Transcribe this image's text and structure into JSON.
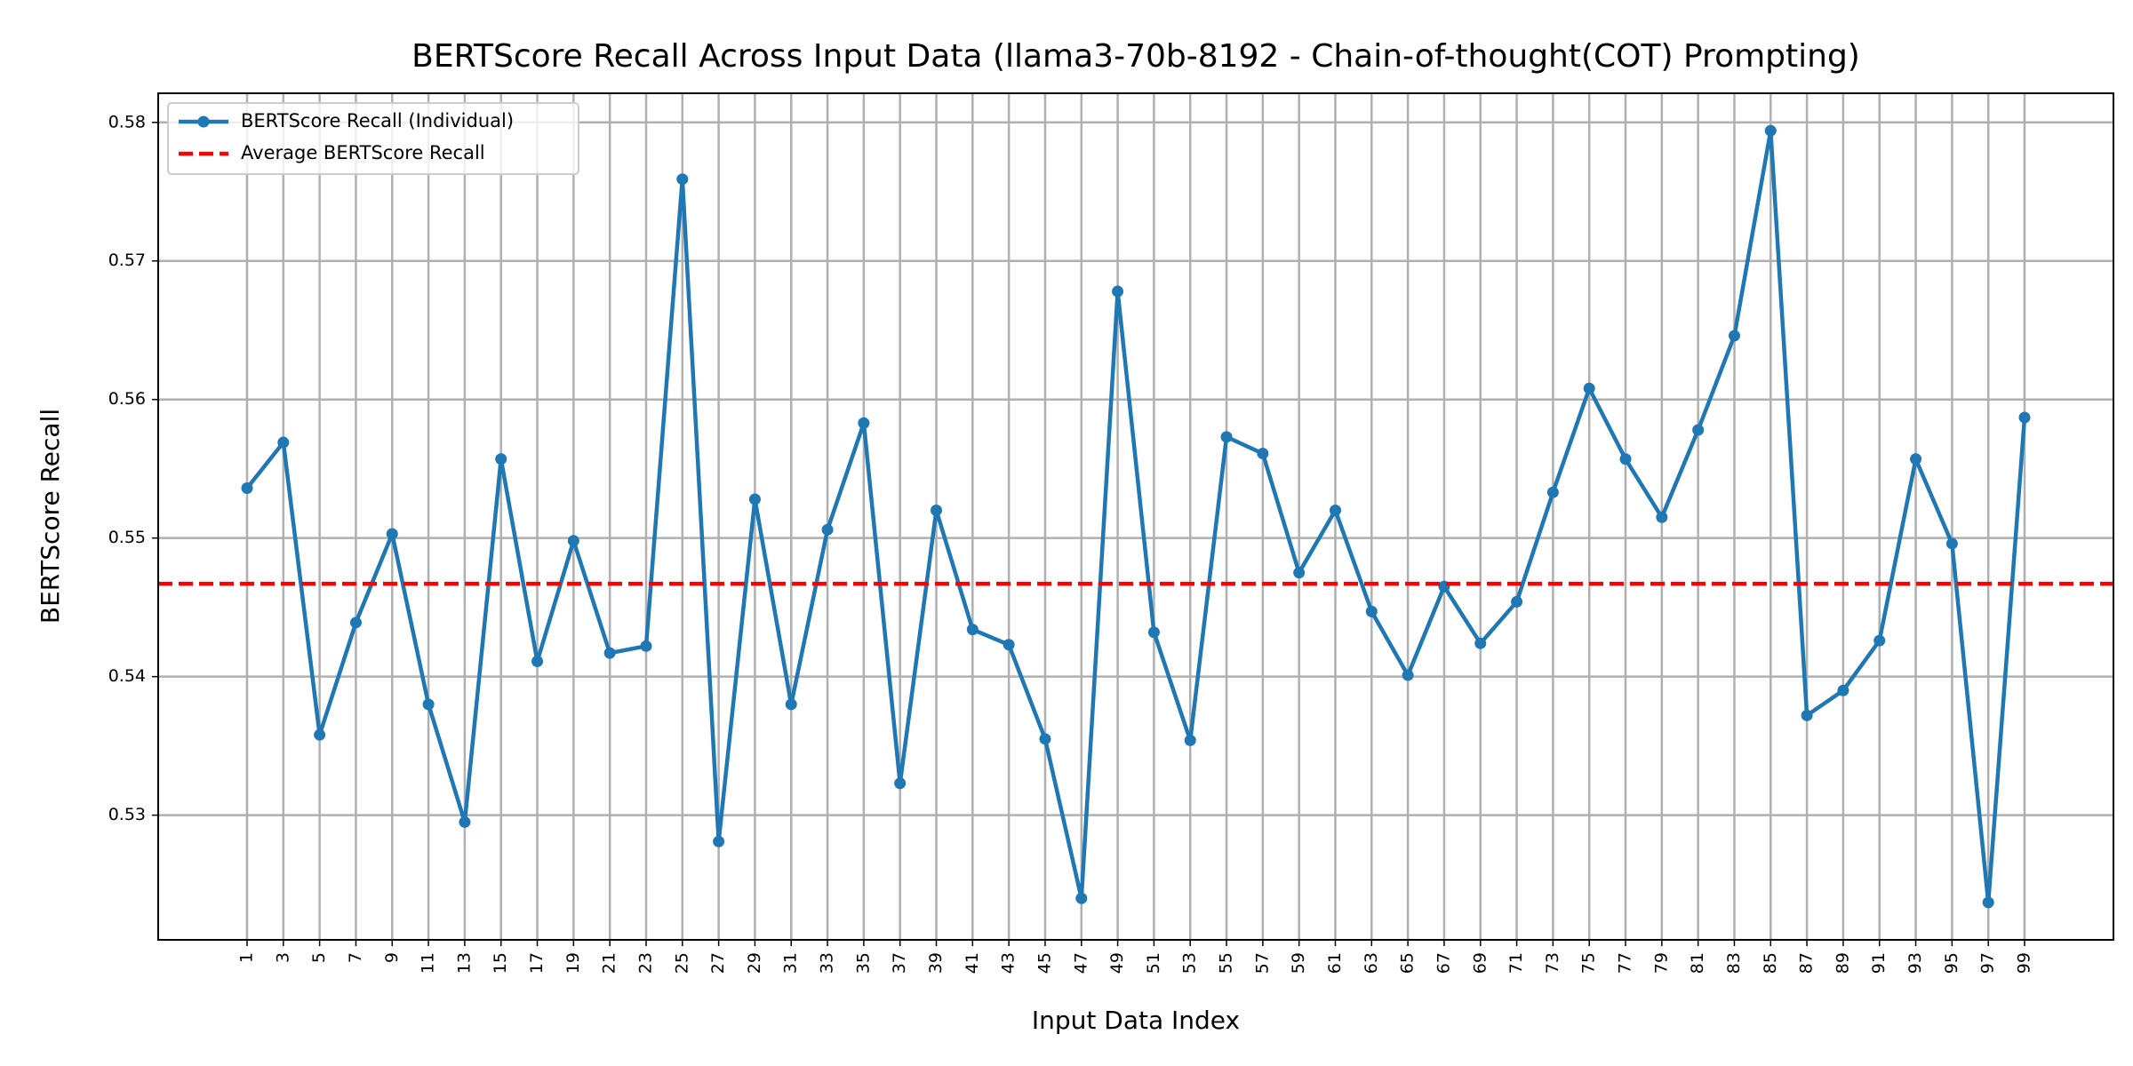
{
  "chart_data": {
    "type": "line",
    "title": "BERTScore Recall Across Input Data (llama3-70b-8192 - Chain-of-thought(COT) Prompting)",
    "x_label": "Input Data Index",
    "y_label": "BERTScore Recall",
    "x": [
      1,
      3,
      5,
      7,
      9,
      11,
      13,
      15,
      17,
      19,
      21,
      23,
      25,
      27,
      29,
      31,
      33,
      35,
      37,
      39,
      41,
      43,
      45,
      47,
      49,
      51,
      53,
      55,
      57,
      59,
      61,
      63,
      65,
      67,
      69,
      71,
      73,
      75,
      77,
      79,
      81,
      83,
      85,
      87,
      89,
      91,
      93,
      95,
      97,
      99
    ],
    "series": [
      {
        "name": "BERTScore Recall (Individual)",
        "color": "#1f77b4",
        "values": [
          0.5536,
          0.5569,
          0.5358,
          0.5439,
          0.5503,
          0.538,
          0.5295,
          0.5557,
          0.5411,
          0.5498,
          0.5417,
          0.5422,
          0.5759,
          0.5281,
          0.5528,
          0.538,
          0.5506,
          0.5583,
          0.5323,
          0.552,
          0.5434,
          0.5423,
          0.5355,
          0.524,
          0.5678,
          0.5432,
          0.5354,
          0.5573,
          0.5561,
          0.5475,
          0.552,
          0.5447,
          0.5401,
          0.5465,
          0.5424,
          0.5454,
          0.5533,
          0.5608,
          0.5557,
          0.5515,
          0.5578,
          0.5646,
          0.5794,
          0.5372,
          0.539,
          0.5426,
          0.5557,
          0.5496,
          0.5237,
          0.5587
        ]
      }
    ],
    "average_line": {
      "name": "Average BERTScore Recall",
      "value": 0.5467,
      "color": "#ff0000",
      "style": "dashed"
    },
    "xlim": [
      -3.9,
      103.9
    ],
    "xticks": [
      1,
      3,
      5,
      7,
      9,
      11,
      13,
      15,
      17,
      19,
      21,
      23,
      25,
      27,
      29,
      31,
      33,
      35,
      37,
      39,
      41,
      43,
      45,
      47,
      49,
      51,
      53,
      55,
      57,
      59,
      61,
      63,
      65,
      67,
      69,
      71,
      73,
      75,
      77,
      79,
      81,
      83,
      85,
      87,
      89,
      91,
      93,
      95,
      97,
      99
    ],
    "ylim": [
      0.521,
      0.5821
    ],
    "yticks": [
      0.53,
      0.54,
      0.55,
      0.56,
      0.57,
      0.58
    ],
    "grid": true,
    "legend": "upper left"
  }
}
